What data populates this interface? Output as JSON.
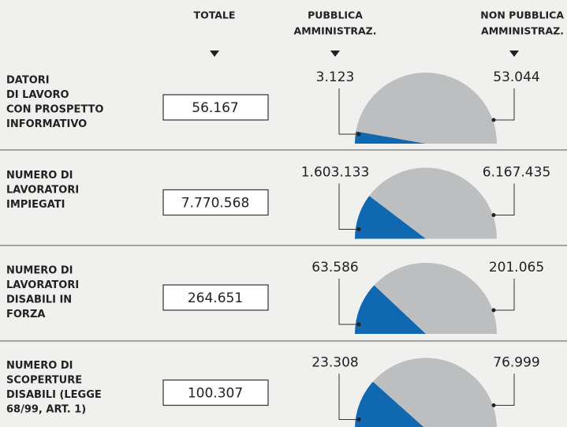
{
  "columns": [
    "TOTALE",
    [
      "PUBBLICA",
      "AMMINISTRAZ."
    ],
    [
      "NON PUBBLICA",
      "AMMINISTRAZ."
    ]
  ],
  "chart_data": [
    {
      "type": "half-pie",
      "title": [
        "DATORI",
        "DI LAVORO",
        "CON PROSPETTO",
        "INFORMATIVO"
      ],
      "total": 56167,
      "total_label": "56.167",
      "values": [
        3123,
        53044
      ],
      "value_labels": [
        "3.123",
        "53.044"
      ],
      "colors": [
        "#1068b0",
        "#bcbec0"
      ]
    },
    {
      "type": "half-pie",
      "title": [
        "NUMERO DI",
        "LAVORATORI",
        "IMPIEGATI"
      ],
      "total": 7770568,
      "total_label": "7.770.568",
      "values": [
        1603133,
        6167435
      ],
      "value_labels": [
        "1.603.133",
        "6.167.435"
      ],
      "colors": [
        "#1068b0",
        "#bcbec0"
      ]
    },
    {
      "type": "half-pie",
      "title": [
        "NUMERO DI",
        "LAVORATORI",
        "DISABILI IN",
        "FORZA"
      ],
      "total": 264651,
      "total_label": "264.651",
      "values": [
        63586,
        201065
      ],
      "value_labels": [
        "63.586",
        "201.065"
      ],
      "colors": [
        "#1068b0",
        "#bcbec0"
      ]
    },
    {
      "type": "half-pie",
      "title": [
        "NUMERO DI",
        "SCOPERTURE",
        "DISABILI (LEGGE",
        "68/99, ART. 1)"
      ],
      "total": 100307,
      "total_label": "100.307",
      "values": [
        23308,
        76999
      ],
      "value_labels": [
        "23.308",
        "76.999"
      ],
      "colors": [
        "#1068b0",
        "#bcbec0"
      ]
    }
  ]
}
